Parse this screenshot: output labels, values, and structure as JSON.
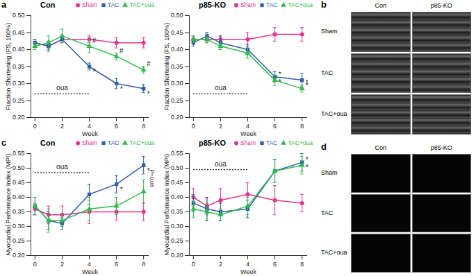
{
  "chart_data": [
    {
      "panel": "a",
      "type": "line",
      "title": "Con",
      "x_label": "Week",
      "y_label": "Fraction Shortening (FS, 100%)",
      "x": [
        0,
        1,
        2,
        4,
        6,
        8
      ],
      "xlim": [
        -0.3,
        8.4
      ],
      "xticks": [
        0,
        2,
        4,
        6,
        8
      ],
      "ylim": [
        0.2,
        0.5
      ],
      "yticks": [
        {
          "value": 0.2,
          "label": "0.20"
        },
        0.25,
        {
          "value": 0.3,
          "label": "0.30"
        },
        0.35,
        {
          "value": 0.4,
          "label": "0.40"
        },
        0.45,
        {
          "value": 0.5,
          "label": "0.50"
        }
      ],
      "legend": "top-right",
      "series": [
        {
          "name": "Sham",
          "color": "#e5338c",
          "marker": "circle",
          "values": [
            0.42,
            0.41,
            0.43,
            0.43,
            0.42,
            0.42
          ],
          "errors": [
            0.01,
            0.01,
            0.01,
            0.01,
            0.015,
            0.015
          ],
          "significance": [
            null,
            null,
            null,
            null,
            null,
            null
          ]
        },
        {
          "name": "TAC",
          "color": "#2f5ea8",
          "marker": "square",
          "values": [
            0.42,
            0.41,
            0.43,
            0.35,
            0.3,
            0.285
          ],
          "errors": [
            0.01,
            0.015,
            0.01,
            0.01,
            0.015,
            0.012
          ],
          "significance": [
            null,
            null,
            null,
            "*",
            "*",
            "*"
          ]
        },
        {
          "name": "TAC+oua",
          "color": "#2dbb4a",
          "marker": "triangle",
          "values": [
            0.41,
            0.42,
            0.44,
            0.41,
            0.38,
            0.34
          ],
          "errors": [
            0.01,
            0.02,
            0.02,
            0.02,
            0.01,
            0.01
          ],
          "significance": [
            null,
            null,
            null,
            "#",
            "#",
            "#"
          ]
        }
      ],
      "annotations": [
        {
          "text": "oua",
          "x": [
            0,
            4
          ],
          "y": 0.27
        }
      ]
    },
    {
      "panel": "a",
      "type": "line",
      "title": "p85-KO",
      "x_label": "Week",
      "y_label": "Fraction Shortening (FS, 100%)",
      "x": [
        0,
        1,
        2,
        4,
        6,
        8
      ],
      "xlim": [
        -0.3,
        8.4
      ],
      "xticks": [
        0,
        2,
        4,
        6,
        8
      ],
      "ylim": [
        0.2,
        0.5
      ],
      "yticks": [
        {
          "value": 0.2,
          "label": "0.20"
        },
        0.25,
        {
          "value": 0.3,
          "label": "0.30"
        },
        0.35,
        {
          "value": 0.4,
          "label": "0.40"
        },
        0.45,
        {
          "value": 0.5,
          "label": "0.50"
        }
      ],
      "legend": "top-right",
      "series": [
        {
          "name": "Sham",
          "color": "#e5338c",
          "marker": "circle",
          "values": [
            0.43,
            0.43,
            0.43,
            0.43,
            0.445,
            0.445
          ],
          "errors": [
            0.01,
            0.01,
            0.01,
            0.02,
            0.02,
            0.02
          ],
          "significance": [
            null,
            null,
            null,
            null,
            null,
            null
          ]
        },
        {
          "name": "TAC",
          "color": "#2f5ea8",
          "marker": "square",
          "values": [
            0.42,
            0.44,
            0.42,
            0.4,
            0.32,
            0.31
          ],
          "errors": [
            0.01,
            0.01,
            0.02,
            0.015,
            0.015,
            0.02
          ],
          "significance": [
            null,
            null,
            null,
            null,
            "*",
            "*"
          ]
        },
        {
          "name": "TAC+oua",
          "color": "#2dbb4a",
          "marker": "triangle",
          "values": [
            0.43,
            0.43,
            0.41,
            0.39,
            0.31,
            0.285
          ],
          "errors": [
            0.01,
            0.01,
            0.01,
            0.015,
            0.015,
            0.01
          ],
          "significance": [
            null,
            null,
            null,
            null,
            "*",
            "*"
          ]
        }
      ],
      "annotations": [
        {
          "text": "oua",
          "x": [
            0,
            4
          ],
          "y": 0.27
        }
      ]
    },
    {
      "panel": "c",
      "type": "line",
      "title": "Con",
      "x_label": "Week",
      "y_label": "Myocardial Performance Index (MPI)",
      "x": [
        0,
        1,
        2,
        4,
        6,
        8
      ],
      "xlim": [
        -0.3,
        8.4
      ],
      "xticks": [
        0,
        2,
        4,
        6,
        8
      ],
      "ylim": [
        0.2,
        0.55
      ],
      "yticks": [
        {
          "value": 0.2,
          "label": "0.20"
        },
        0.25,
        {
          "value": 0.3,
          "label": "0.30"
        },
        0.35,
        {
          "value": 0.4,
          "label": "0.40"
        },
        0.45,
        {
          "value": 0.5,
          "label": "0.50"
        },
        0.55
      ],
      "legend": "top-right",
      "series": [
        {
          "name": "Sham",
          "color": "#e5338c",
          "marker": "circle",
          "values": [
            0.36,
            0.34,
            0.34,
            0.35,
            0.35,
            0.35
          ],
          "errors": [
            0.02,
            0.03,
            0.03,
            0.04,
            0.03,
            0.03
          ],
          "significance": [
            null,
            null,
            null,
            null,
            null,
            null
          ]
        },
        {
          "name": "TAC",
          "color": "#2f5ea8",
          "marker": "square",
          "values": [
            0.37,
            0.32,
            0.31,
            0.41,
            0.445,
            0.51
          ],
          "errors": [
            0.03,
            0.03,
            0.02,
            0.035,
            0.03,
            0.03
          ],
          "significance": [
            null,
            null,
            null,
            null,
            "*",
            "*"
          ]
        },
        {
          "name": "TAC+oua",
          "color": "#2dbb4a",
          "marker": "triangle",
          "values": [
            0.37,
            0.32,
            0.32,
            0.36,
            0.37,
            0.42
          ],
          "errors": [
            0.03,
            0.04,
            0.02,
            0.04,
            0.03,
            0.04
          ],
          "significance": [
            null,
            null,
            null,
            null,
            null,
            null
          ]
        }
      ],
      "annotations": [
        {
          "text": "oua",
          "x": [
            0,
            4
          ],
          "y": 0.485
        },
        {
          "text": "P=0.06",
          "x": 8.3,
          "y": 0.465
        }
      ]
    },
    {
      "panel": "c",
      "type": "line",
      "title": "p85-KO",
      "x_label": "Week",
      "y_label": "Myocardial Performance Index (MPI)",
      "x": [
        0,
        1,
        2,
        4,
        6,
        8
      ],
      "xlim": [
        -0.3,
        8.4
      ],
      "xticks": [
        0,
        2,
        4,
        6,
        8
      ],
      "ylim": [
        0.2,
        0.55
      ],
      "yticks": [
        {
          "value": 0.2,
          "label": "0.20"
        },
        0.25,
        {
          "value": 0.3,
          "label": "0.30"
        },
        0.35,
        {
          "value": 0.4,
          "label": "0.40"
        },
        0.45,
        {
          "value": 0.5,
          "label": "0.50"
        },
        0.55
      ],
      "legend": "top-right",
      "series": [
        {
          "name": "Sham",
          "color": "#e5338c",
          "marker": "circle",
          "values": [
            0.4,
            0.37,
            0.39,
            0.41,
            0.39,
            0.38
          ],
          "errors": [
            0.03,
            0.03,
            0.04,
            0.04,
            0.05,
            0.03
          ],
          "significance": [
            null,
            null,
            null,
            null,
            null,
            null
          ]
        },
        {
          "name": "TAC",
          "color": "#2f5ea8",
          "marker": "square",
          "values": [
            0.38,
            0.36,
            0.35,
            0.36,
            0.49,
            0.52
          ],
          "errors": [
            0.03,
            0.04,
            0.03,
            0.03,
            0.04,
            0.03
          ],
          "significance": [
            null,
            null,
            null,
            null,
            null,
            "*"
          ]
        },
        {
          "name": "TAC+oua",
          "color": "#2dbb4a",
          "marker": "triangle",
          "values": [
            0.36,
            0.35,
            0.34,
            0.37,
            0.49,
            0.51
          ],
          "errors": [
            0.03,
            0.03,
            0.02,
            0.03,
            0.04,
            0.03
          ],
          "significance": [
            null,
            null,
            null,
            null,
            null,
            "*"
          ]
        }
      ],
      "annotations": [
        {
          "text": "oua",
          "x": [
            0,
            4
          ],
          "y": 0.495
        }
      ]
    }
  ],
  "images": [
    {
      "panel": "b",
      "columns": [
        "Con",
        "p85-KO"
      ],
      "rows": [
        "Sham",
        "TAC",
        "TAC+oua"
      ]
    },
    {
      "panel": "d",
      "columns": [
        "Con",
        "p85-KO"
      ],
      "rows": [
        "Sham",
        "TAC",
        "TAC+oua"
      ]
    }
  ]
}
